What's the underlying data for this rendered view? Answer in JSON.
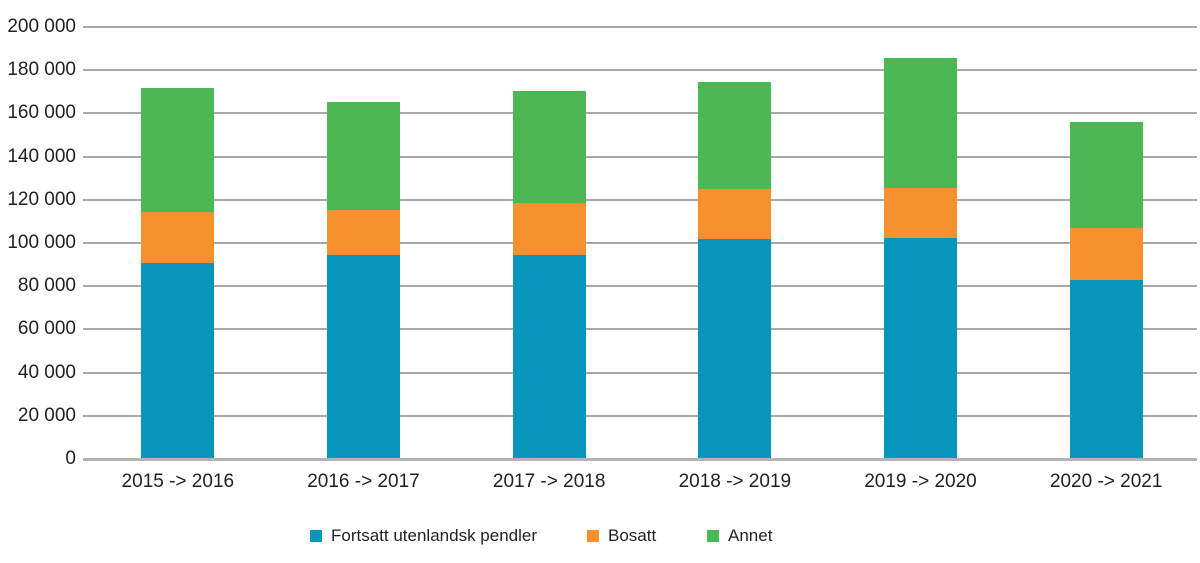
{
  "chart_data": {
    "type": "bar",
    "stacked": true,
    "categories": [
      "2015 -> 2016",
      "2016 -> 2017",
      "2017 -> 2018",
      "2018 -> 2019",
      "2019 -> 2020",
      "2020 -> 2021"
    ],
    "series": [
      {
        "name": "Fortsatt utenlandsk pendler",
        "color": "#0996bb",
        "values": [
          90500,
          94000,
          94000,
          101500,
          102000,
          82500
        ]
      },
      {
        "name": "Bosatt",
        "color": "#f6922e",
        "values": [
          23500,
          21000,
          24000,
          23000,
          23000,
          24000
        ]
      },
      {
        "name": "Annet",
        "color": "#4bb755",
        "values": [
          57500,
          50000,
          52000,
          49500,
          60000,
          49000
        ]
      }
    ],
    "stack_totals": [
      171500,
      165000,
      170000,
      174000,
      185000,
      155500
    ],
    "xlabel": "",
    "ylabel": "",
    "ylim": [
      0,
      200000
    ],
    "ytick_step": 20000,
    "ytick_labels": [
      "0",
      "20 000",
      "40 000",
      "60 000",
      "80 000",
      "100 000",
      "120 000",
      "140 000",
      "160 000",
      "180 000",
      "200 000"
    ],
    "grid": true,
    "legend_position": "bottom",
    "colors": {
      "gridline": "#a8a8a8",
      "baseline": "#b3b3b3",
      "text": "#231f20",
      "background": "#ffffff"
    }
  }
}
